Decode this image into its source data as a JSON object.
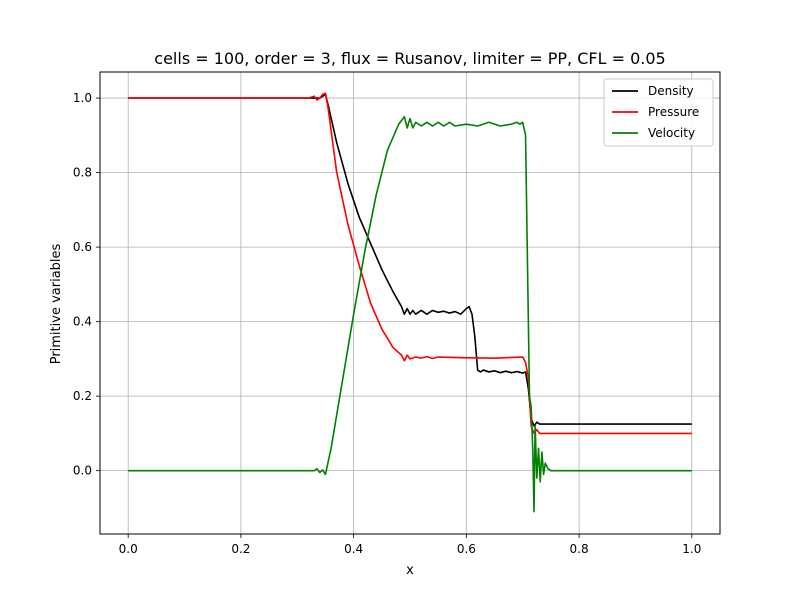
{
  "chart_data": {
    "type": "line",
    "title": "cells = 100, order = 3, flux = Rusanov, limiter = PP, CFL = 0.05",
    "xlabel": "x",
    "ylabel": "Primitive variables",
    "xlim": [
      -0.05,
      1.05
    ],
    "ylim": [
      -0.17,
      1.07
    ],
    "xticks": [
      0.0,
      0.2,
      0.4,
      0.6,
      0.8,
      1.0
    ],
    "xtick_labels": [
      "0.0",
      "0.2",
      "0.4",
      "0.6",
      "0.8",
      "1.0"
    ],
    "yticks": [
      0.0,
      0.2,
      0.4,
      0.6,
      0.8,
      1.0
    ],
    "ytick_labels": [
      "0.0",
      "0.2",
      "0.4",
      "0.6",
      "0.8",
      "1.0"
    ],
    "grid": true,
    "legend_position": "top-right",
    "series": [
      {
        "name": "Density",
        "color": "#000000",
        "x": [
          0.0,
          0.32,
          0.33,
          0.34,
          0.345,
          0.35,
          0.355,
          0.37,
          0.39,
          0.41,
          0.43,
          0.45,
          0.47,
          0.485,
          0.49,
          0.495,
          0.5,
          0.505,
          0.51,
          0.52,
          0.53,
          0.54,
          0.55,
          0.56,
          0.57,
          0.58,
          0.59,
          0.6,
          0.605,
          0.61,
          0.615,
          0.62,
          0.625,
          0.63,
          0.64,
          0.65,
          0.66,
          0.67,
          0.68,
          0.69,
          0.7,
          0.705,
          0.71,
          0.715,
          0.72,
          0.725,
          0.73,
          0.74,
          0.75,
          0.8,
          1.0
        ],
        "y": [
          1.0,
          1.0,
          1.0,
          1.0,
          1.005,
          1.01,
          0.98,
          0.88,
          0.77,
          0.68,
          0.61,
          0.54,
          0.48,
          0.44,
          0.42,
          0.435,
          0.42,
          0.43,
          0.42,
          0.43,
          0.42,
          0.43,
          0.425,
          0.428,
          0.423,
          0.427,
          0.42,
          0.435,
          0.44,
          0.42,
          0.36,
          0.27,
          0.265,
          0.27,
          0.265,
          0.268,
          0.263,
          0.267,
          0.263,
          0.266,
          0.262,
          0.265,
          0.22,
          0.14,
          0.12,
          0.13,
          0.125,
          0.125,
          0.125,
          0.125,
          0.125
        ]
      },
      {
        "name": "Pressure",
        "color": "#ff0000",
        "x": [
          0.0,
          0.32,
          0.33,
          0.335,
          0.34,
          0.345,
          0.35,
          0.355,
          0.37,
          0.39,
          0.41,
          0.43,
          0.45,
          0.47,
          0.485,
          0.49,
          0.495,
          0.5,
          0.51,
          0.52,
          0.53,
          0.54,
          0.55,
          0.6,
          0.65,
          0.7,
          0.705,
          0.71,
          0.715,
          0.72,
          0.725,
          0.73,
          0.74,
          1.0
        ],
        "y": [
          1.0,
          1.0,
          1.005,
          0.995,
          1.0,
          1.01,
          1.013,
          0.97,
          0.8,
          0.66,
          0.55,
          0.45,
          0.38,
          0.33,
          0.31,
          0.295,
          0.31,
          0.3,
          0.305,
          0.302,
          0.306,
          0.301,
          0.305,
          0.303,
          0.302,
          0.305,
          0.29,
          0.25,
          0.12,
          0.1,
          0.11,
          0.1,
          0.1,
          0.1
        ]
      },
      {
        "name": "Velocity",
        "color": "#008000",
        "x": [
          0.0,
          0.33,
          0.335,
          0.34,
          0.345,
          0.35,
          0.36,
          0.38,
          0.4,
          0.42,
          0.44,
          0.46,
          0.48,
          0.49,
          0.495,
          0.5,
          0.505,
          0.51,
          0.52,
          0.53,
          0.54,
          0.55,
          0.56,
          0.57,
          0.58,
          0.6,
          0.62,
          0.64,
          0.66,
          0.68,
          0.69,
          0.695,
          0.7,
          0.705,
          0.708,
          0.712,
          0.715,
          0.718,
          0.72,
          0.722,
          0.725,
          0.728,
          0.731,
          0.734,
          0.737,
          0.74,
          0.745,
          0.75,
          0.76,
          0.8,
          1.0
        ],
        "y": [
          0.0,
          0.0,
          0.005,
          -0.005,
          0.002,
          -0.01,
          0.06,
          0.24,
          0.42,
          0.59,
          0.74,
          0.86,
          0.93,
          0.95,
          0.92,
          0.945,
          0.92,
          0.935,
          0.925,
          0.935,
          0.925,
          0.935,
          0.925,
          0.935,
          0.925,
          0.93,
          0.925,
          0.935,
          0.925,
          0.93,
          0.935,
          0.93,
          0.935,
          0.9,
          0.6,
          0.2,
          0.17,
          0.05,
          -0.11,
          0.12,
          -0.02,
          0.06,
          -0.03,
          0.05,
          -0.01,
          0.02,
          0.005,
          0.0,
          0.0,
          0.0,
          0.0
        ]
      }
    ]
  }
}
